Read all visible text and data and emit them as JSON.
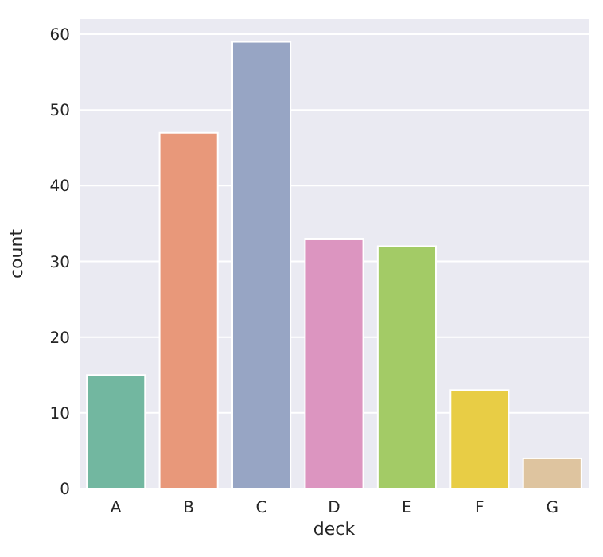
{
  "chart_data": {
    "type": "bar",
    "xlabel": "deck",
    "ylabel": "count",
    "categories": [
      "A",
      "B",
      "C",
      "D",
      "E",
      "F",
      "G"
    ],
    "values": [
      15,
      47,
      59,
      33,
      32,
      13,
      4
    ],
    "colors": [
      "#72b7a0",
      "#e8987a",
      "#97a5c4",
      "#dc95c0",
      "#a3cb66",
      "#e8cd45",
      "#dec49f"
    ],
    "ylim": [
      0,
      62
    ],
    "yticks": [
      0,
      10,
      20,
      30,
      40,
      50,
      60
    ],
    "grid": "y"
  }
}
